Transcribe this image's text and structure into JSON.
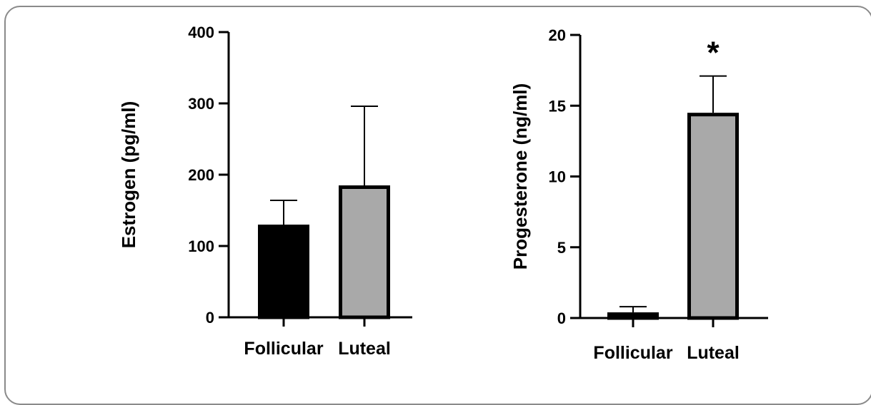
{
  "chart_data": [
    {
      "type": "bar",
      "categories": [
        "Follicular",
        "Luteal"
      ],
      "values": [
        130,
        185
      ],
      "errors": [
        34,
        111
      ],
      "ylabel": "Estrogen (pg/ml)",
      "xlabel": "",
      "ylim": [
        0,
        400
      ],
      "yticks": [
        0,
        100,
        200,
        300,
        400
      ],
      "bar_colors": [
        "#000000",
        "#a9a9a9"
      ],
      "significance": [
        "",
        ""
      ]
    },
    {
      "type": "bar",
      "categories": [
        "Follicular",
        "Luteal"
      ],
      "values": [
        0.4,
        14.5
      ],
      "errors": [
        0.4,
        2.6
      ],
      "ylabel": "Progesterone (ng/ml)",
      "xlabel": "",
      "ylim": [
        0,
        20
      ],
      "yticks": [
        0,
        5,
        10,
        15,
        20
      ],
      "bar_colors": [
        "#000000",
        "#a9a9a9"
      ],
      "significance": [
        "",
        "*"
      ]
    }
  ]
}
